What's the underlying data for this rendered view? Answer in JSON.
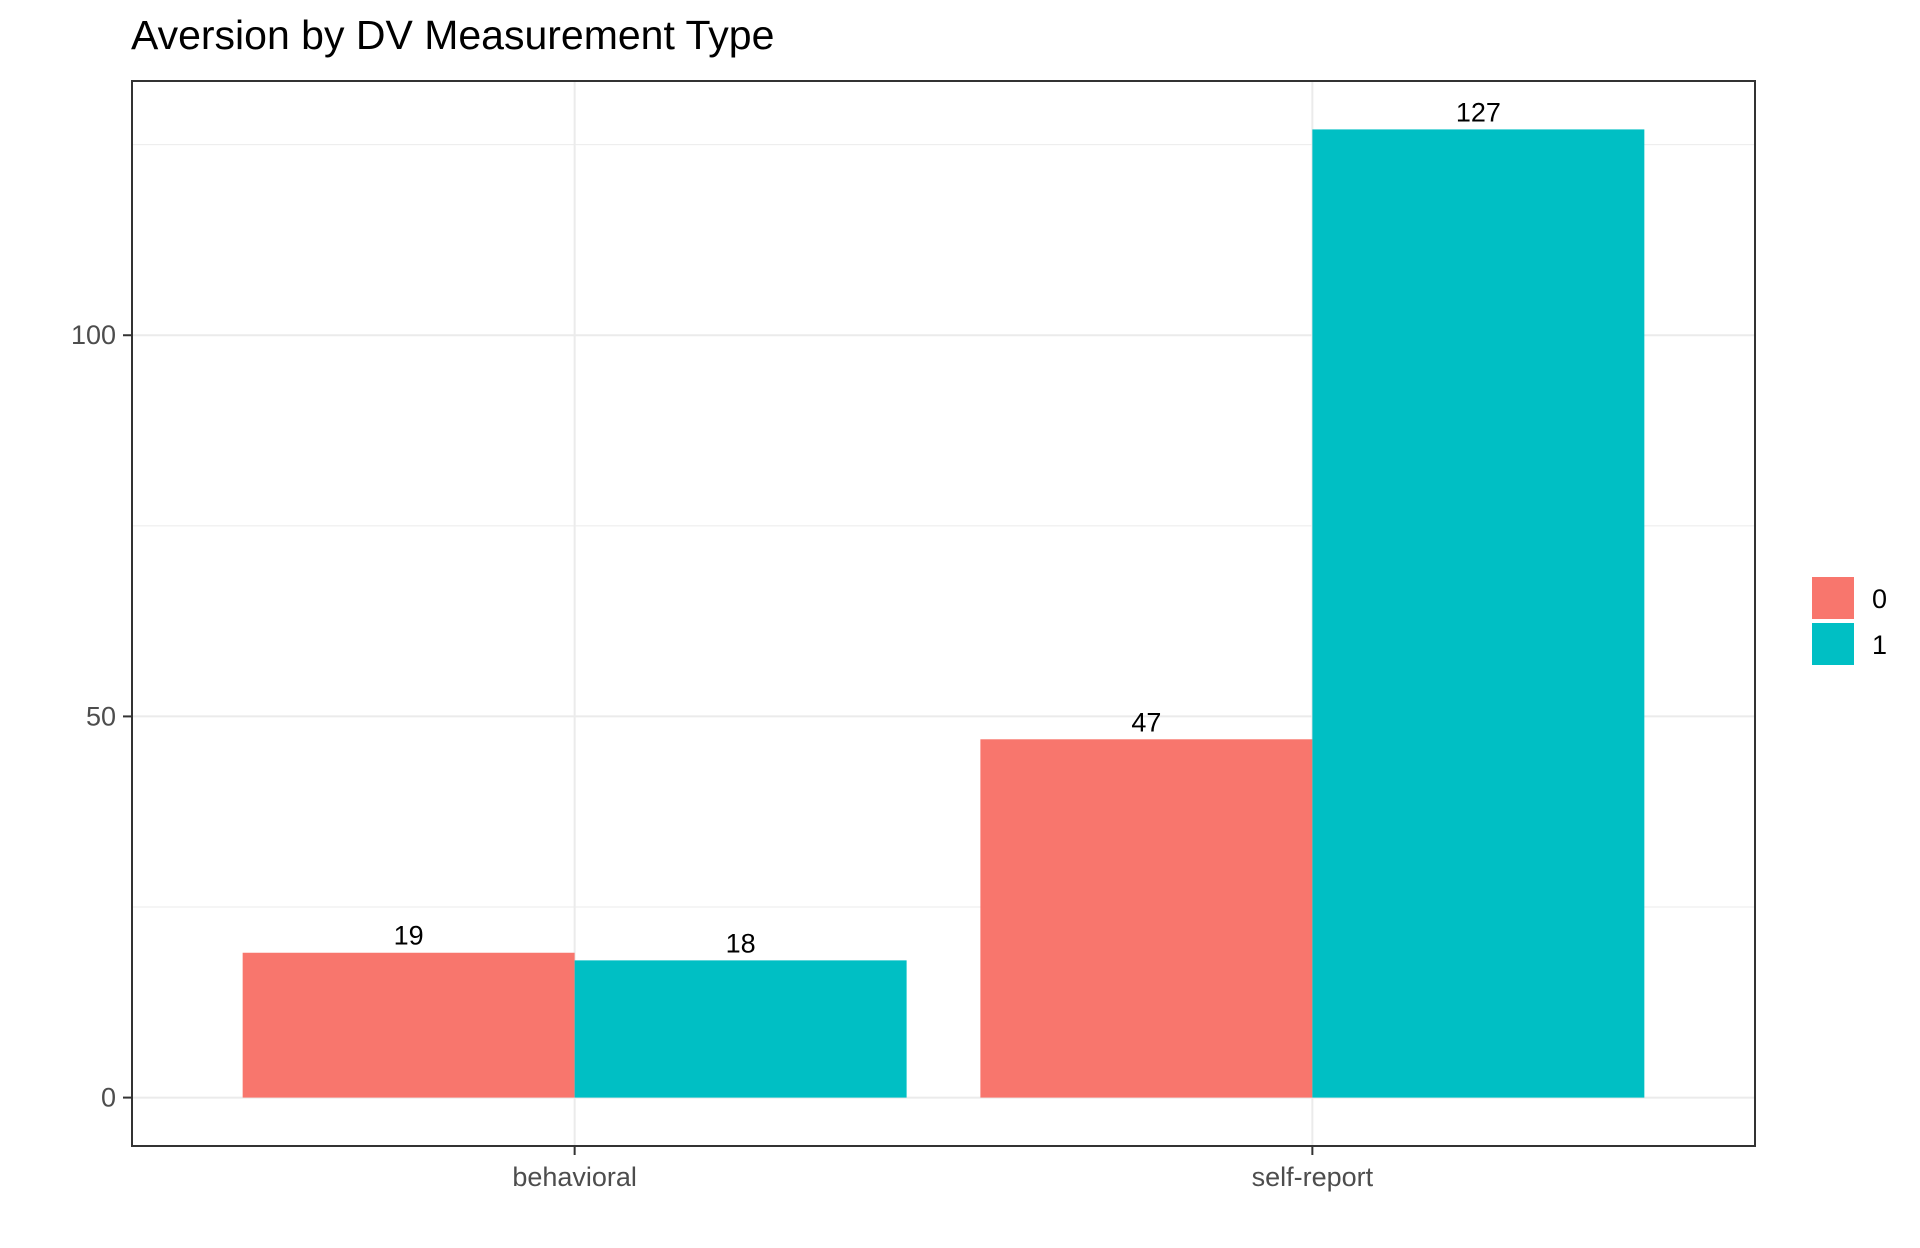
{
  "chart_data": {
    "type": "bar",
    "title": "Aversion by DV Measurement Type",
    "xlabel": "",
    "ylabel": "",
    "categories": [
      "behavioral",
      "self-report"
    ],
    "series": [
      {
        "name": "0",
        "color": "#F8766D",
        "values": [
          19,
          47
        ]
      },
      {
        "name": "1",
        "color": "#00BFC4",
        "values": [
          18,
          127
        ]
      }
    ],
    "ylim": [
      -6.35,
      133.35
    ],
    "y_ticks": [
      0,
      50,
      100
    ],
    "y_tick_labels": [
      "0",
      "50",
      "100"
    ],
    "y_minor_ticks": [
      25,
      75,
      125
    ],
    "grid": true,
    "legend_position": "right"
  }
}
